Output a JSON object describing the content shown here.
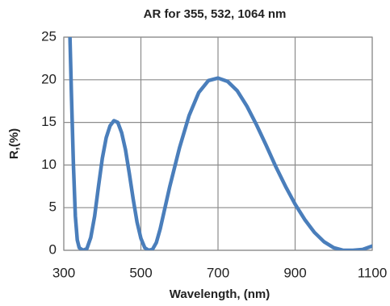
{
  "chart_data": {
    "type": "line",
    "title": "AR for 355, 532, 1064 nm",
    "x_label": "Wavelength, (nm)",
    "y_label": "R,(%)",
    "x": [
      316,
      320,
      325,
      330,
      335,
      340,
      350,
      360,
      370,
      380,
      390,
      400,
      410,
      420,
      430,
      440,
      450,
      460,
      470,
      480,
      490,
      500,
      510,
      520,
      530,
      540,
      550,
      575,
      600,
      625,
      650,
      675,
      700,
      725,
      750,
      775,
      800,
      825,
      850,
      875,
      900,
      925,
      950,
      975,
      1000,
      1025,
      1050,
      1075,
      1100
    ],
    "series": [
      {
        "color": "#4a7ebb",
        "values": [
          25,
          18,
          10,
          4,
          1.2,
          0.3,
          0,
          0.2,
          1.5,
          4,
          7.5,
          10.8,
          13.2,
          14.6,
          15.2,
          15,
          13.8,
          11.8,
          9,
          6,
          3.3,
          1.4,
          0.3,
          0,
          0.1,
          0.9,
          2.5,
          7.5,
          12,
          15.8,
          18.5,
          19.9,
          20.2,
          19.8,
          18.7,
          16.9,
          14.7,
          12.3,
          9.8,
          7.5,
          5.4,
          3.6,
          2.1,
          1,
          0.3,
          0,
          0,
          0.1,
          0.5
        ]
      }
    ],
    "xlim": [
      300,
      1100
    ],
    "xticks": [
      300,
      500,
      700,
      900,
      1100
    ],
    "ylim": [
      0,
      25
    ],
    "yticks": [
      0,
      5,
      10,
      15,
      20,
      25
    ],
    "grid": true
  }
}
